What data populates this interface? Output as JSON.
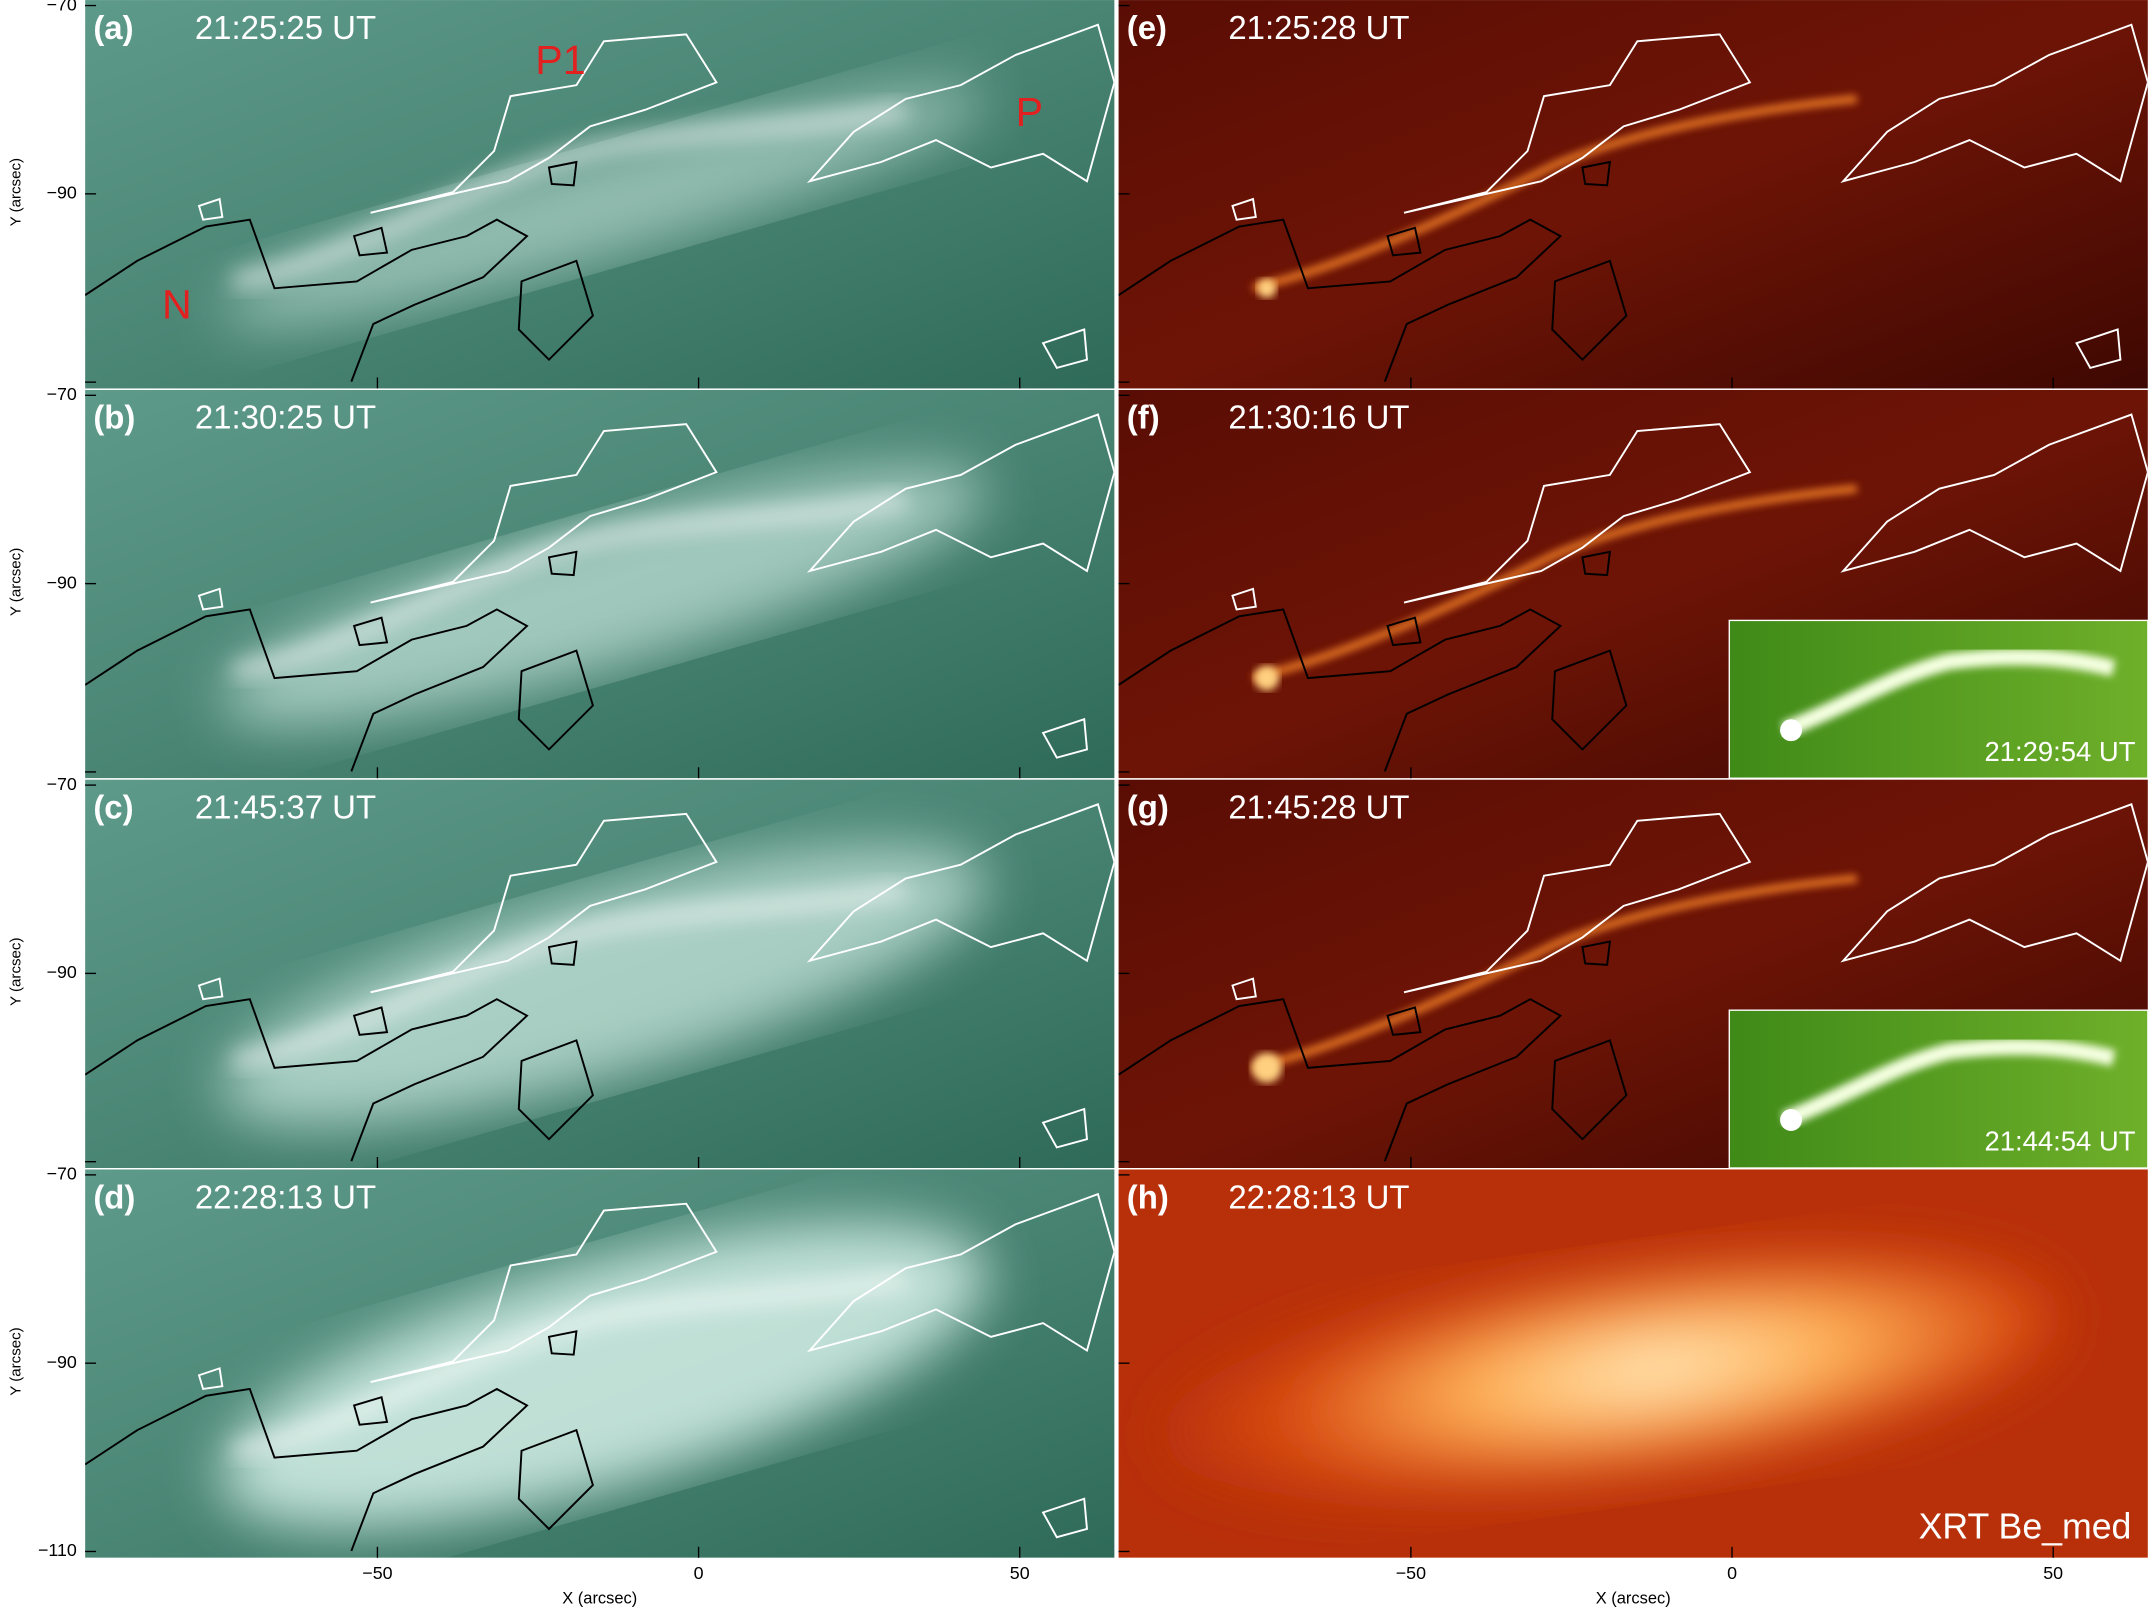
{
  "panels": [
    {
      "label": "(a)",
      "time": "21:25:25 UT"
    },
    {
      "label": "(b)",
      "time": "21:30:25 UT"
    },
    {
      "label": "(c)",
      "time": "21:45:37 UT"
    },
    {
      "label": "(d)",
      "time": "22:28:13 UT"
    },
    {
      "label": "(e)",
      "time": "21:25:28 UT"
    },
    {
      "label": "(f)",
      "time": "21:30:16 UT"
    },
    {
      "label": "(g)",
      "time": "21:45:28 UT"
    },
    {
      "label": "(h)",
      "time": "22:28:13 UT"
    }
  ],
  "annotations": {
    "p1": "P1",
    "p": "P",
    "n": "N"
  },
  "insets": [
    {
      "time": "21:29:54 UT"
    },
    {
      "time": "21:44:54 UT"
    }
  ],
  "instrument": "XRT Be_med",
  "y_axis": {
    "label": "Y (arcsec)",
    "ticks": [
      {
        "value": -70,
        "label": "−70"
      },
      {
        "value": -90,
        "label": "−90"
      },
      {
        "value": -110,
        "label": "−110"
      }
    ]
  },
  "x_axis": {
    "label": "X (arcsec)",
    "ticks": [
      {
        "value": -50,
        "label": "−50"
      },
      0,
      50
    ]
  }
}
